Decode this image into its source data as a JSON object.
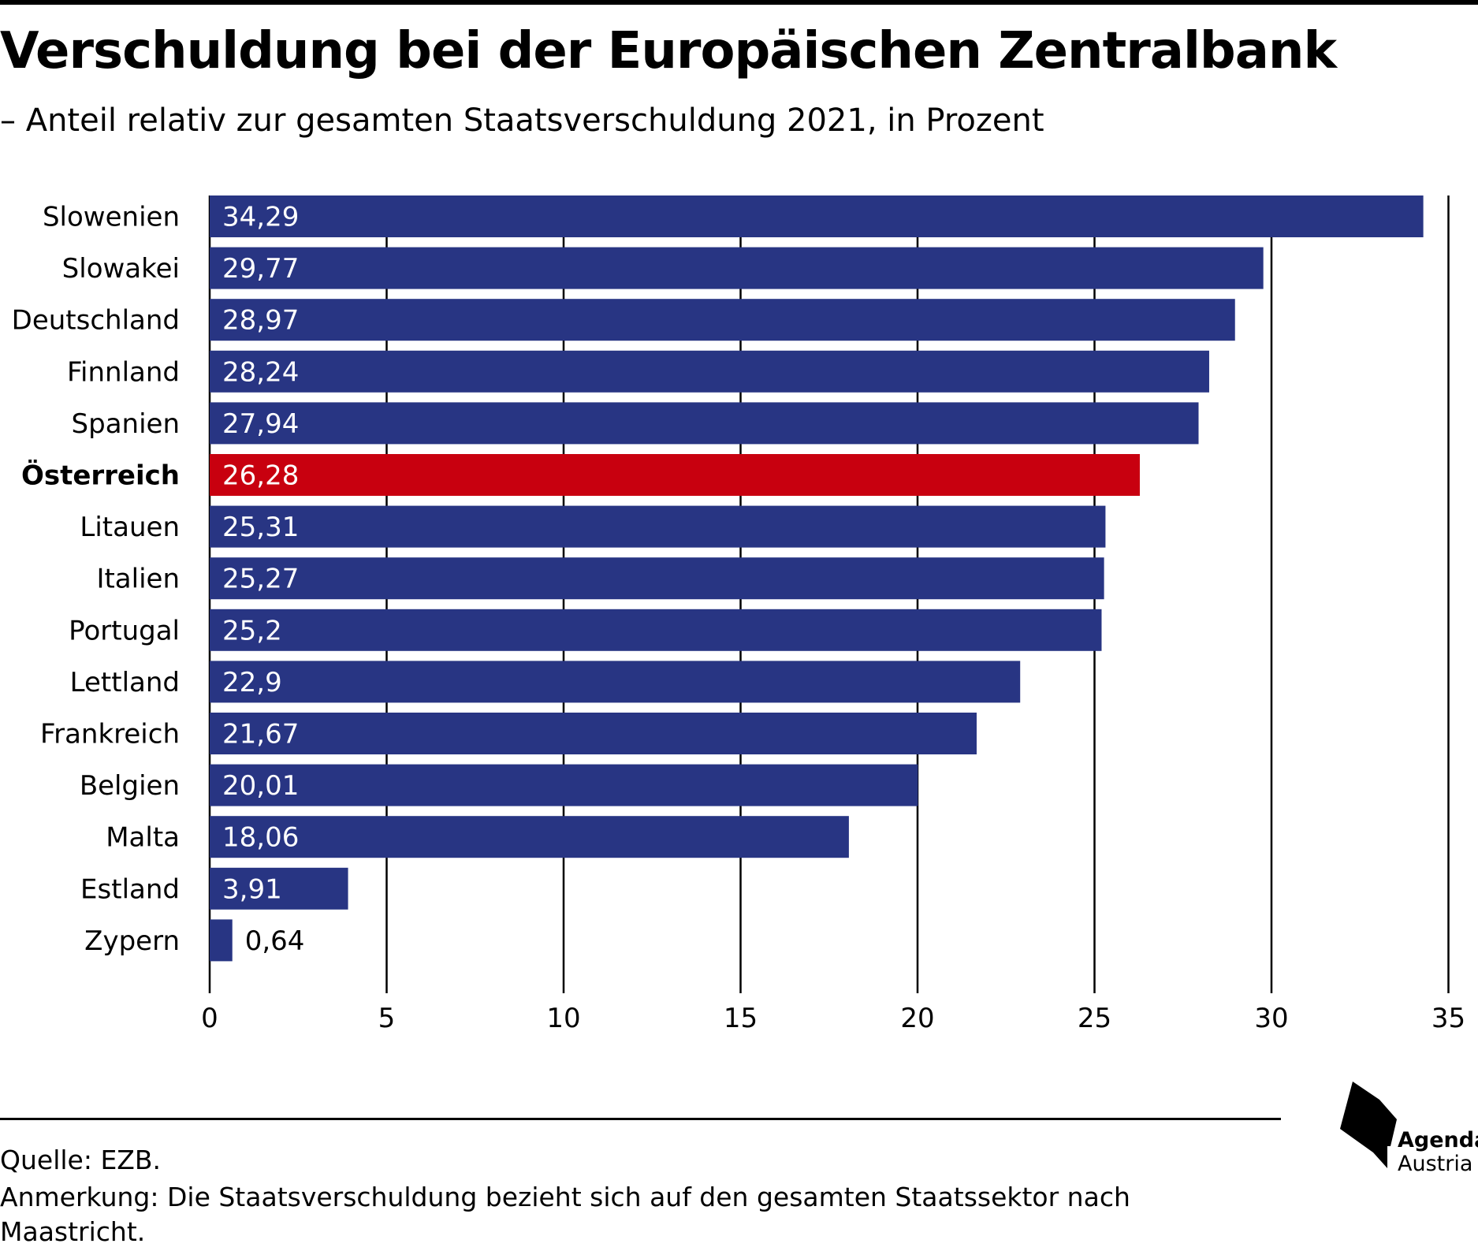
{
  "header": {
    "title": "Verschuldung bei der Europäischen Zentralbank",
    "subtitle": "– Anteil relativ zur gesamten Staatsverschuldung 2021, in Prozent"
  },
  "chart_data": {
    "type": "bar",
    "orientation": "horizontal",
    "categories": [
      "Slowenien",
      "Slowakei",
      "Deutschland",
      "Finnland",
      "Spanien",
      "Österreich",
      "Litauen",
      "Italien",
      "Portugal",
      "Lettland",
      "Frankreich",
      "Belgien",
      "Malta",
      "Estland",
      "Zypern"
    ],
    "values": [
      34.29,
      29.77,
      28.97,
      28.24,
      27.94,
      26.28,
      25.31,
      25.27,
      25.2,
      22.9,
      21.67,
      20.01,
      18.06,
      3.91,
      0.64
    ],
    "value_labels": [
      "34,29",
      "29,77",
      "28,97",
      "28,24",
      "27,94",
      "26,28",
      "25,31",
      "25,27",
      "25,2",
      "22,9",
      "21,67",
      "20,01",
      "18,06",
      "3,91",
      "0,64"
    ],
    "highlight": "Österreich",
    "xlim": [
      0,
      35
    ],
    "xticks": [
      0,
      5,
      10,
      15,
      20,
      25,
      30,
      35
    ],
    "grid": "vertical",
    "colors": {
      "bar": "#283583",
      "highlight": "#c8000f",
      "grid": "#000000"
    }
  },
  "footer": {
    "source": "Quelle: EZB.",
    "note": "Anmerkung: Die Staatsverschuldung bezieht sich auf den gesamten Staatssektor nach Maastricht.",
    "logo_line1": "Agenda",
    "logo_line2": "Austria"
  }
}
